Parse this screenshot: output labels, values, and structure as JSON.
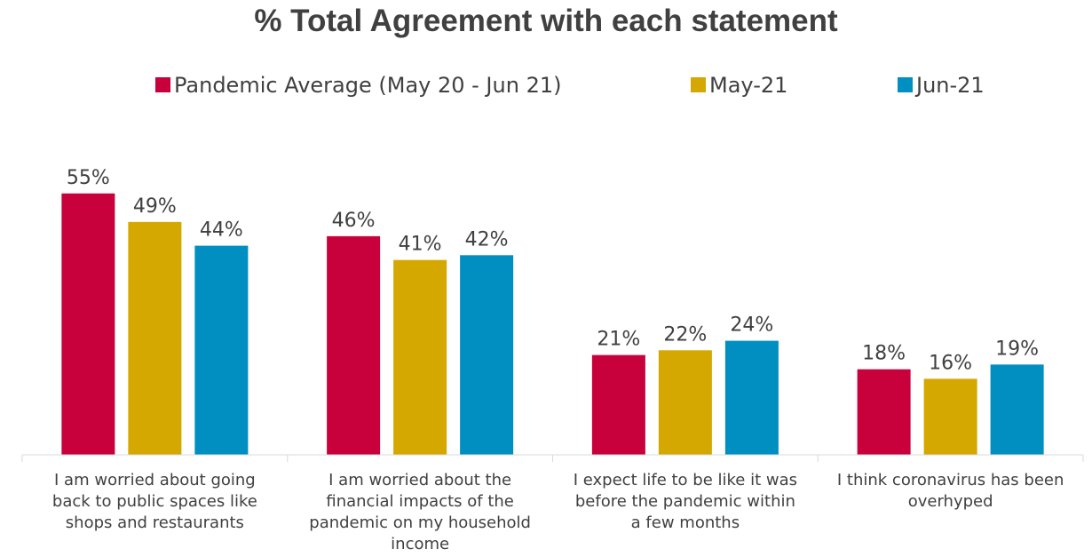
{
  "chart_data": {
    "type": "bar",
    "title": "% Total Agreement with each statement",
    "categories": [
      "I am worried about going back to public spaces like shops and restaurants",
      "I am worried about the financial impacts of the pandemic on my household income",
      "I expect life to be like it was before the pandemic within a few months",
      "I think coronavirus has been overhyped"
    ],
    "category_lines": [
      [
        "I am worried about going",
        "back to public spaces like",
        "shops and restaurants"
      ],
      [
        "I am worried about the",
        "financial impacts of the",
        "pandemic on my household",
        "income"
      ],
      [
        "I expect life to be like it was",
        "before the pandemic within",
        "a few months"
      ],
      [
        "I think coronavirus has been",
        "overhyped"
      ]
    ],
    "series": [
      {
        "name": "Pandemic Average (May 20 - Jun 21)",
        "color": "#C8003C",
        "values": [
          55,
          46,
          21,
          18
        ],
        "labels": [
          "55%",
          "46%",
          "21%",
          "18%"
        ]
      },
      {
        "name": "May-21",
        "color": "#D4A800",
        "values": [
          49,
          41,
          22,
          16
        ],
        "labels": [
          "49%",
          "41%",
          "22%",
          "16%"
        ]
      },
      {
        "name": "Jun-21",
        "color": "#008FC0",
        "values": [
          44,
          42,
          24,
          19
        ],
        "labels": [
          "44%",
          "42%",
          "24%",
          "19%"
        ]
      }
    ],
    "value_format": "percent",
    "ylim": [
      0,
      60
    ],
    "xlabel": "",
    "ylabel": "",
    "grid": false,
    "legend_position": "top"
  }
}
